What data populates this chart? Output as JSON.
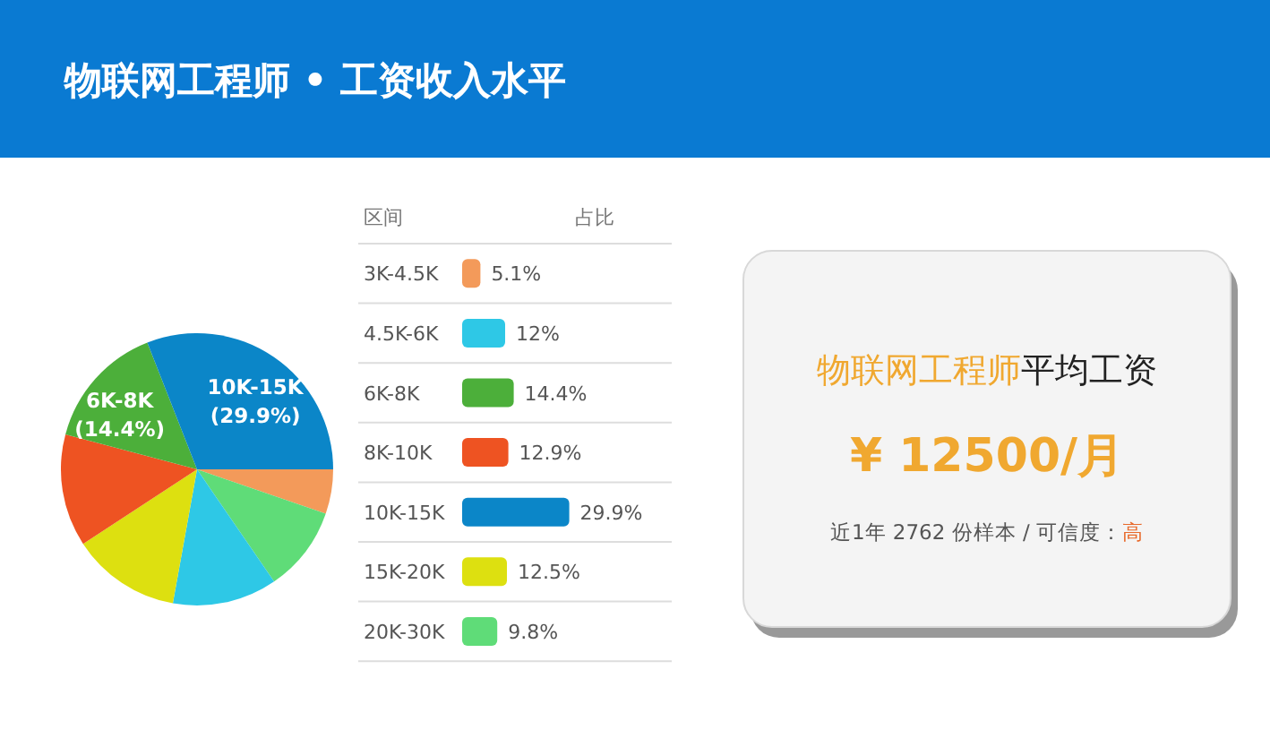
{
  "chart_data": [
    {
      "type": "pie",
      "title": "物联网工程师 • 工资收入水平",
      "categories": [
        null,
        null,
        null,
        null,
        null,
        "6K-8K",
        "10K-15K"
      ],
      "values": [
        5.1,
        9.8,
        12,
        12.5,
        12.9,
        14.4,
        29.9
      ],
      "value_labels": [
        null,
        null,
        null,
        null,
        null,
        "(14.4%)",
        "(29.9%)"
      ],
      "colors": [
        "#f39a5a",
        "#5fdc78",
        "#2ec8e6",
        "#dde010",
        "#ee5322",
        "#4caf3a",
        "#0b86c8"
      ]
    },
    {
      "type": "bar",
      "orientation": "horizontal",
      "ylabel": "区间",
      "xlabel": "占比",
      "categories": [
        "3K-4.5K",
        "4.5K-6K",
        "6K-8K",
        "8K-10K",
        "10K-15K",
        "15K-20K",
        "20K-30K"
      ],
      "values": [
        5.1,
        12,
        14.4,
        12.9,
        29.9,
        12.5,
        9.8
      ],
      "value_labels": [
        "5.1%",
        "12%",
        "14.4%",
        "12.9%",
        "29.9%",
        "12.5%",
        "9.8%"
      ],
      "colors": [
        "#f39a5a",
        "#2ec8e6",
        "#4caf3a",
        "#ee5322",
        "#0b86c8",
        "#dde010",
        "#5fdc78"
      ]
    },
    {
      "type": "other",
      "annotations": [
        "物联网工程师",
        "平均工资",
        "¥ 12500/月",
        "近1年 2762 份样本 / 可信度：",
        "高"
      ]
    }
  ]
}
